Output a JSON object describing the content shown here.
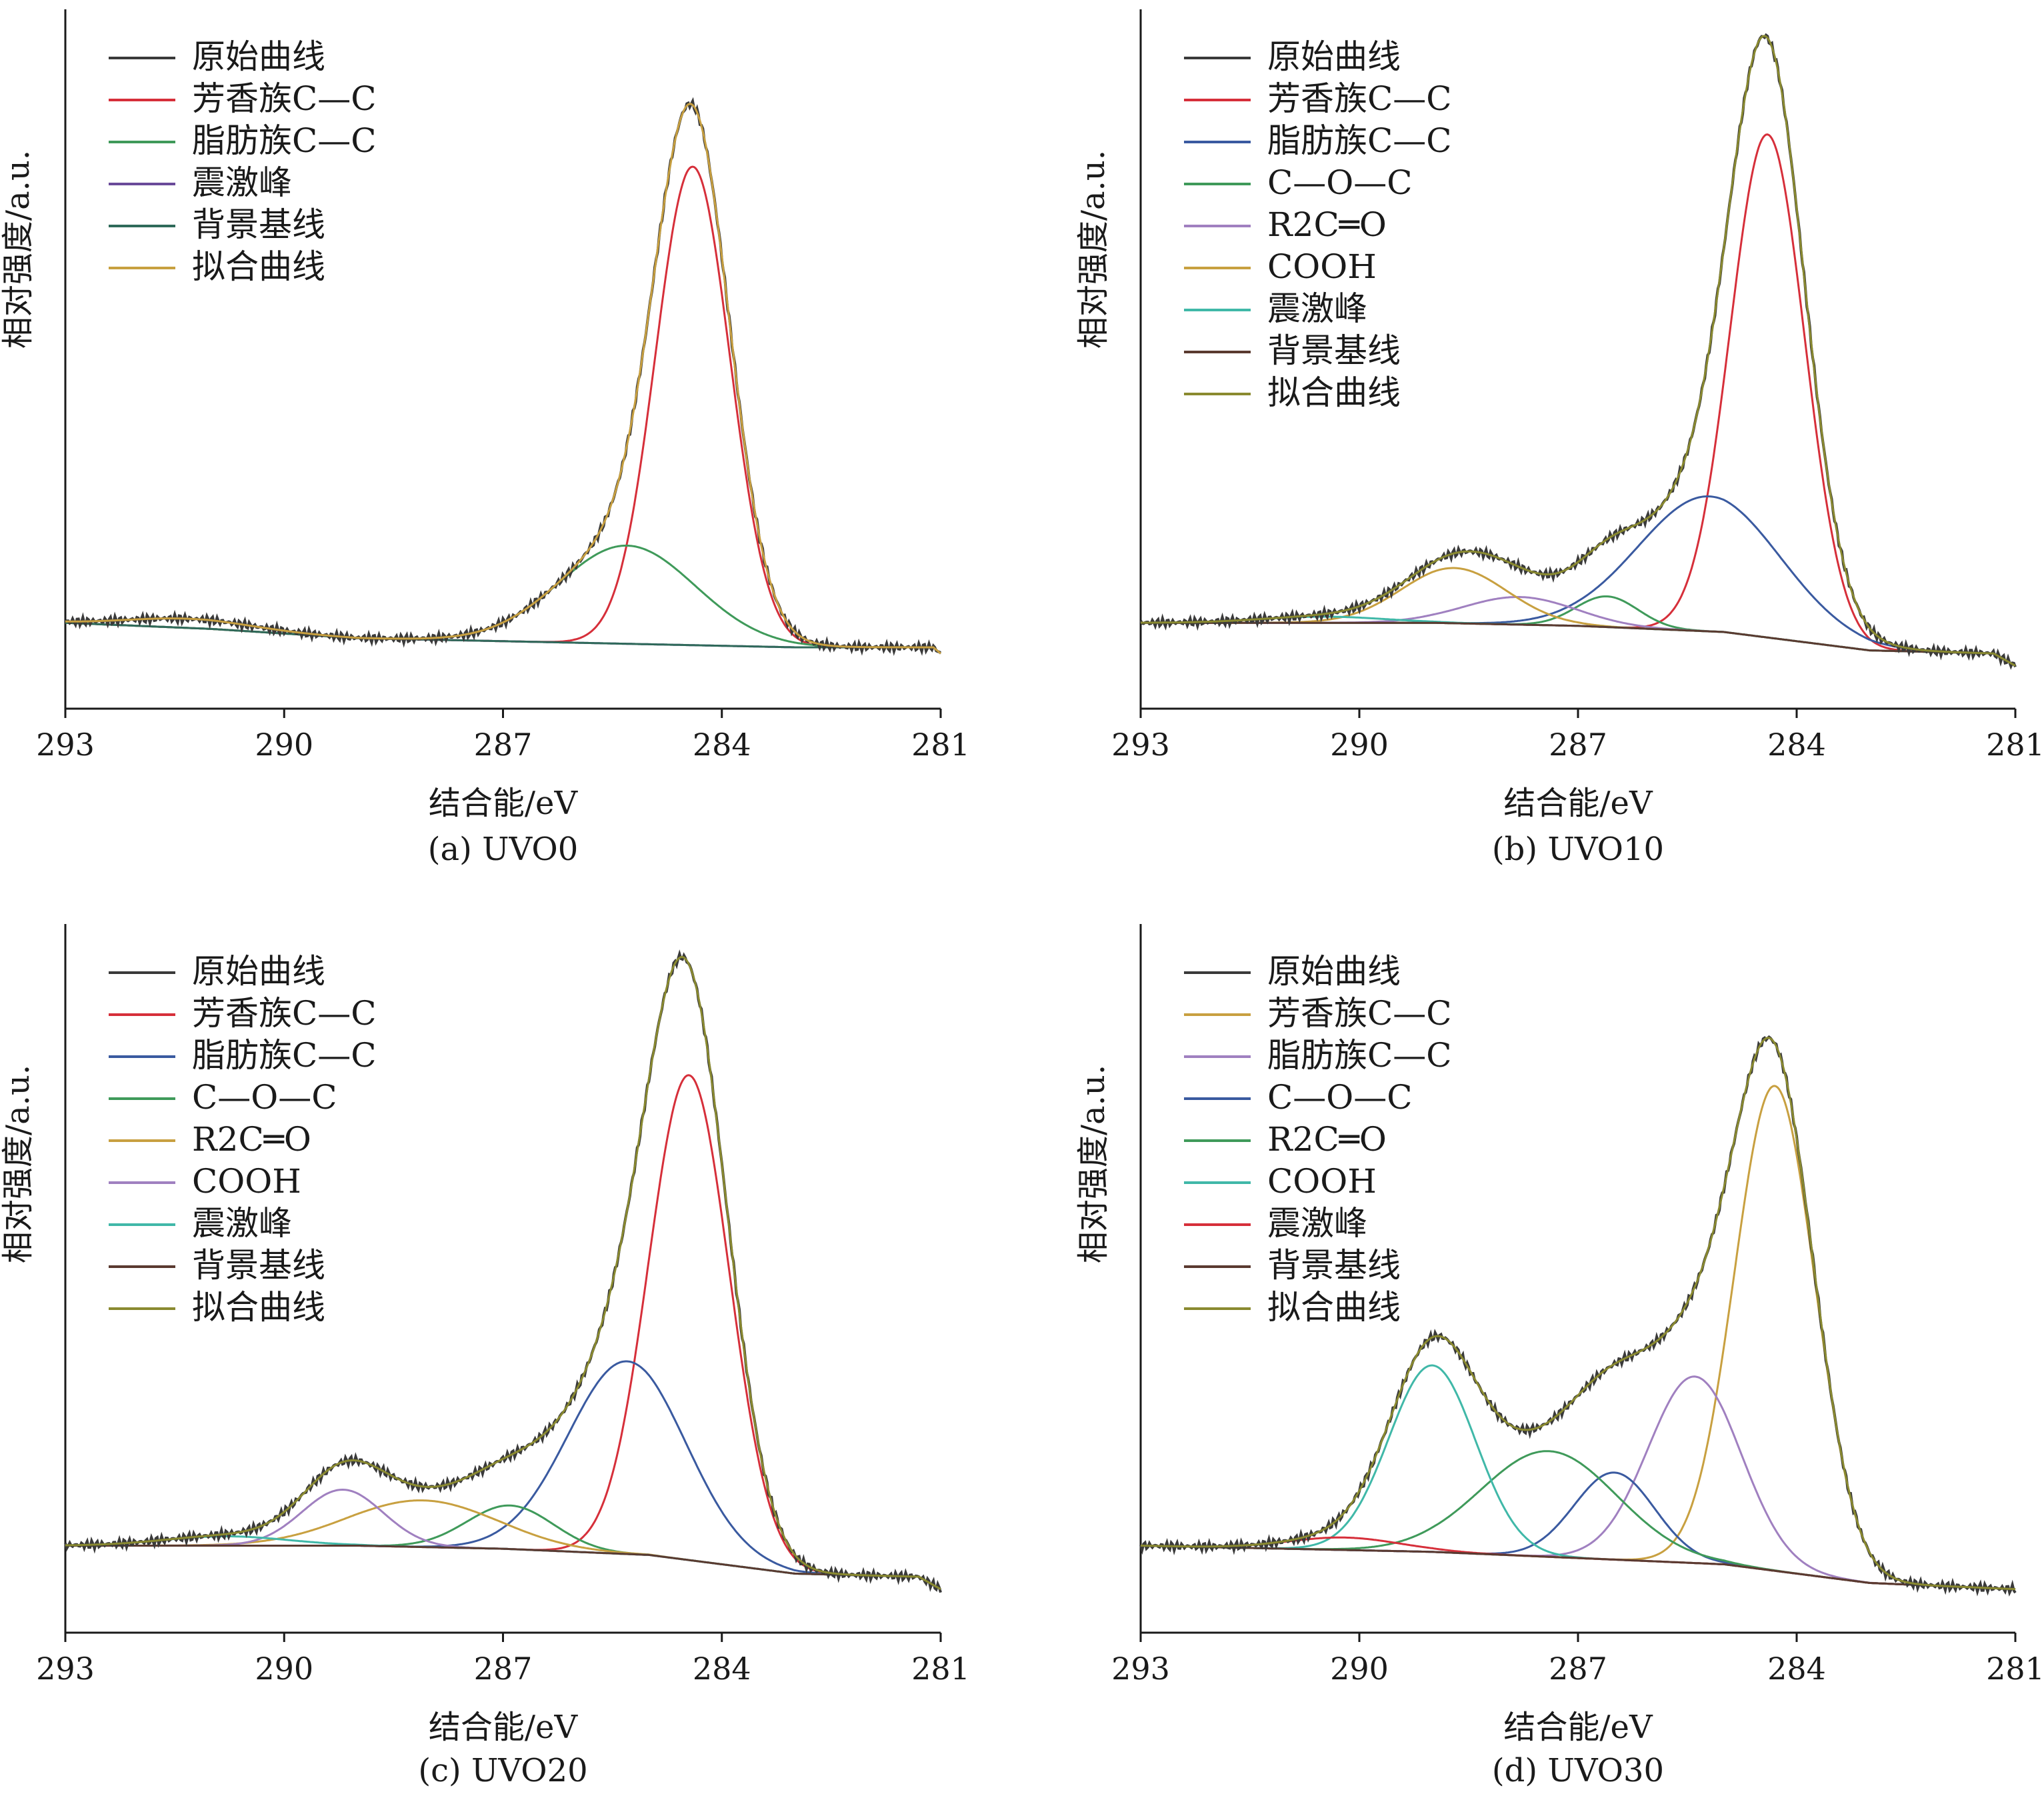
{
  "figure": {
    "panels": [
      {
        "caption": "(a) UVO0",
        "ylabel": "相对强度/a.u.",
        "xlabel": "结合能/eV",
        "xlim": [
          293,
          281
        ],
        "xticks": [
          293,
          290,
          287,
          284,
          281
        ],
        "legend": [
          {
            "label": "原始曲线",
            "color": "#3a3a3a"
          },
          {
            "label": "芳香族C—C",
            "color": "#d62f3a"
          },
          {
            "label": "脂肪族C—C",
            "color": "#3f9a5a"
          },
          {
            "label": "震激峰",
            "color": "#6a4a9a"
          },
          {
            "label": "背景基线",
            "color": "#2f6a5a"
          },
          {
            "label": "拟合曲线",
            "color": "#c8a040"
          }
        ]
      },
      {
        "caption": "(b) UVO10",
        "ylabel": "相对强度/a.u.",
        "xlabel": "结合能/eV",
        "xlim": [
          293,
          281
        ],
        "xticks": [
          293,
          290,
          287,
          284,
          281
        ],
        "legend": [
          {
            "label": "原始曲线",
            "color": "#3a3a3a"
          },
          {
            "label": "芳香族C—C",
            "color": "#d62f3a"
          },
          {
            "label": "脂肪族C—C",
            "color": "#3a5aa0"
          },
          {
            "label": "C—O—C",
            "color": "#3f9a5a"
          },
          {
            "label": "R2C═O",
            "color": "#a080c0"
          },
          {
            "label": "COOH",
            "color": "#c8a040"
          },
          {
            "label": "震激峰",
            "color": "#40b8a8"
          },
          {
            "label": "背景基线",
            "color": "#5a3a30"
          },
          {
            "label": "拟合曲线",
            "color": "#8a8a30"
          }
        ]
      },
      {
        "caption": "(c) UVO20",
        "ylabel": "相对强度/a.u.",
        "xlabel": "结合能/eV",
        "xlim": [
          293,
          281
        ],
        "xticks": [
          293,
          290,
          287,
          284,
          281
        ],
        "legend": [
          {
            "label": "原始曲线",
            "color": "#3a3a3a"
          },
          {
            "label": "芳香族C—C",
            "color": "#d62f3a"
          },
          {
            "label": "脂肪族C—C",
            "color": "#3a5aa0"
          },
          {
            "label": "C—O—C",
            "color": "#3f9a5a"
          },
          {
            "label": "R2C═O",
            "color": "#c8a040"
          },
          {
            "label": "COOH",
            "color": "#a080c0"
          },
          {
            "label": "震激峰",
            "color": "#40b8a8"
          },
          {
            "label": "背景基线",
            "color": "#5a3a30"
          },
          {
            "label": "拟合曲线",
            "color": "#8a8a30"
          }
        ]
      },
      {
        "caption": "(d) UVO30",
        "ylabel": "相对强度/a.u.",
        "xlabel": "结合能/eV",
        "xlim": [
          293,
          281
        ],
        "xticks": [
          293,
          290,
          287,
          284,
          281
        ],
        "legend": [
          {
            "label": "原始曲线",
            "color": "#3a3a3a"
          },
          {
            "label": "芳香族C—C",
            "color": "#c8a040"
          },
          {
            "label": "脂肪族C—C",
            "color": "#a080c0"
          },
          {
            "label": "C—O—C",
            "color": "#3a5aa0"
          },
          {
            "label": "R2C═O",
            "color": "#3f9a5a"
          },
          {
            "label": "COOH",
            "color": "#40b8a8"
          },
          {
            "label": "震激峰",
            "color": "#d62f3a"
          },
          {
            "label": "背景基线",
            "color": "#5a3a30"
          },
          {
            "label": "拟合曲线",
            "color": "#8a8a30"
          }
        ]
      }
    ]
  },
  "chart_data": [
    {
      "type": "line",
      "caption": "(a) UVO0",
      "xlabel": "结合能/eV",
      "ylabel": "相对强度/a.u.",
      "xlim": [
        293,
        281
      ],
      "ylim": [
        -0.14,
        1.0
      ],
      "grid": false,
      "legend_position": "top-left",
      "background": [
        [
          293,
          0.0
        ],
        [
          291,
          -0.01
        ],
        [
          289,
          -0.025
        ],
        [
          287,
          -0.03
        ],
        [
          285,
          -0.035
        ],
        [
          283,
          -0.04
        ],
        [
          281.1,
          -0.04
        ],
        [
          281,
          -0.05
        ]
      ],
      "components": [
        {
          "name": "芳香族C—C",
          "center": 284.4,
          "height": 0.78,
          "fwhm": 1.2
        },
        {
          "name": "脂肪族C—C",
          "center": 285.3,
          "height": 0.16,
          "fwhm": 2.2
        },
        {
          "name": "震激峰",
          "center": 291.3,
          "height": 0.015,
          "fwhm": 2.0
        }
      ],
      "series": [
        {
          "name": "原始曲线",
          "kind": "raw"
        },
        {
          "name": "芳香族C—C",
          "kind": "component",
          "index": 0
        },
        {
          "name": "脂肪族C—C",
          "kind": "component",
          "index": 1
        },
        {
          "name": "震激峰",
          "kind": "component",
          "index": 2
        },
        {
          "name": "背景基线",
          "kind": "background"
        },
        {
          "name": "拟合曲线",
          "kind": "sum"
        }
      ]
    },
    {
      "type": "line",
      "caption": "(b) UVO10",
      "xlabel": "结合能/eV",
      "ylabel": "相对强度/a.u.",
      "xlim": [
        293,
        281
      ],
      "ylim": [
        -0.14,
        1.0
      ],
      "grid": false,
      "legend_position": "top-left",
      "background": [
        [
          293,
          0.0
        ],
        [
          289,
          0.0
        ],
        [
          287,
          -0.005
        ],
        [
          285,
          -0.015
        ],
        [
          284,
          -0.03
        ],
        [
          283,
          -0.045
        ],
        [
          281.3,
          -0.05
        ],
        [
          281,
          -0.07
        ]
      ],
      "components": [
        {
          "name": "芳香族C—C",
          "center": 284.4,
          "height": 0.82,
          "fwhm": 1.2
        },
        {
          "name": "脂肪族C—C",
          "center": 285.2,
          "height": 0.22,
          "fwhm": 2.3
        },
        {
          "name": "C—O—C",
          "center": 286.6,
          "height": 0.05,
          "fwhm": 1.0
        },
        {
          "name": "R2C═O",
          "center": 287.8,
          "height": 0.045,
          "fwhm": 1.8
        },
        {
          "name": "COOH",
          "center": 288.7,
          "height": 0.09,
          "fwhm": 1.7
        },
        {
          "name": "震激峰",
          "center": 290.5,
          "height": 0.01,
          "fwhm": 2.0
        }
      ],
      "series": [
        {
          "name": "原始曲线",
          "kind": "raw"
        },
        {
          "name": "芳香族C—C",
          "kind": "component",
          "index": 0
        },
        {
          "name": "脂肪族C—C",
          "kind": "component",
          "index": 1
        },
        {
          "name": "C—O—C",
          "kind": "component",
          "index": 2
        },
        {
          "name": "R2C═O",
          "kind": "component",
          "index": 3
        },
        {
          "name": "COOH",
          "kind": "component",
          "index": 4
        },
        {
          "name": "震激峰",
          "kind": "component",
          "index": 5
        },
        {
          "name": "背景基线",
          "kind": "background"
        },
        {
          "name": "拟合曲线",
          "kind": "sum"
        }
      ]
    },
    {
      "type": "line",
      "caption": "(c) UVO20",
      "xlabel": "结合能/eV",
      "ylabel": "相对强度/a.u.",
      "xlim": [
        293,
        281
      ],
      "ylim": [
        -0.14,
        1.0
      ],
      "grid": false,
      "legend_position": "top-left",
      "background": [
        [
          293,
          0.0
        ],
        [
          289,
          0.0
        ],
        [
          287,
          -0.005
        ],
        [
          285,
          -0.015
        ],
        [
          284,
          -0.03
        ],
        [
          283,
          -0.045
        ],
        [
          281.3,
          -0.05
        ],
        [
          281,
          -0.07
        ]
      ],
      "components": [
        {
          "name": "芳香族C—C",
          "center": 284.45,
          "height": 0.78,
          "fwhm": 1.3
        },
        {
          "name": "脂肪族C—C",
          "center": 285.3,
          "height": 0.31,
          "fwhm": 1.9
        },
        {
          "name": "C—O—C",
          "center": 286.9,
          "height": 0.07,
          "fwhm": 1.4
        },
        {
          "name": "R2C═O",
          "center": 288.1,
          "height": 0.075,
          "fwhm": 2.4
        },
        {
          "name": "COOH",
          "center": 289.2,
          "height": 0.09,
          "fwhm": 1.3
        },
        {
          "name": "震激峰",
          "center": 290.8,
          "height": 0.015,
          "fwhm": 2.0
        }
      ],
      "series": [
        {
          "name": "原始曲线",
          "kind": "raw"
        },
        {
          "name": "芳香族C—C",
          "kind": "component",
          "index": 0
        },
        {
          "name": "脂肪族C—C",
          "kind": "component",
          "index": 1
        },
        {
          "name": "C—O—C",
          "kind": "component",
          "index": 2
        },
        {
          "name": "R2C═O",
          "kind": "component",
          "index": 3
        },
        {
          "name": "COOH",
          "kind": "component",
          "index": 4
        },
        {
          "name": "震激峰",
          "kind": "component",
          "index": 5
        },
        {
          "name": "背景基线",
          "kind": "background"
        },
        {
          "name": "拟合曲线",
          "kind": "sum"
        }
      ]
    },
    {
      "type": "line",
      "caption": "(d) UVO30",
      "xlabel": "结合能/eV",
      "ylabel": "相对强度/a.u.",
      "xlim": [
        293,
        281
      ],
      "ylim": [
        -0.14,
        1.0
      ],
      "grid": false,
      "legend_position": "top-left",
      "background": [
        [
          293,
          0.0
        ],
        [
          289,
          -0.01
        ],
        [
          287,
          -0.02
        ],
        [
          285,
          -0.03
        ],
        [
          284,
          -0.045
        ],
        [
          283,
          -0.06
        ],
        [
          281,
          -0.07
        ]
      ],
      "components": [
        {
          "name": "芳香族C—C",
          "center": 284.3,
          "height": 0.78,
          "fwhm": 1.3
        },
        {
          "name": "脂肪族C—C",
          "center": 285.4,
          "height": 0.3,
          "fwhm": 1.5
        },
        {
          "name": "C—O—C",
          "center": 286.5,
          "height": 0.14,
          "fwhm": 1.3
        },
        {
          "name": "R2C═O",
          "center": 287.4,
          "height": 0.17,
          "fwhm": 2.2
        },
        {
          "name": "COOH",
          "center": 289.0,
          "height": 0.3,
          "fwhm": 1.4
        },
        {
          "name": "震激峰",
          "center": 290.2,
          "height": 0.02,
          "fwhm": 1.8
        }
      ],
      "series": [
        {
          "name": "原始曲线",
          "kind": "raw"
        },
        {
          "name": "芳香族C—C",
          "kind": "component",
          "index": 0
        },
        {
          "name": "脂肪族C—C",
          "kind": "component",
          "index": 1
        },
        {
          "name": "C—O—C",
          "kind": "component",
          "index": 2
        },
        {
          "name": "R2C═O",
          "kind": "component",
          "index": 3
        },
        {
          "name": "COOH",
          "kind": "component",
          "index": 4
        },
        {
          "name": "震激峰",
          "kind": "component",
          "index": 5
        },
        {
          "name": "背景基线",
          "kind": "background"
        },
        {
          "name": "拟合曲线",
          "kind": "sum"
        }
      ]
    }
  ]
}
